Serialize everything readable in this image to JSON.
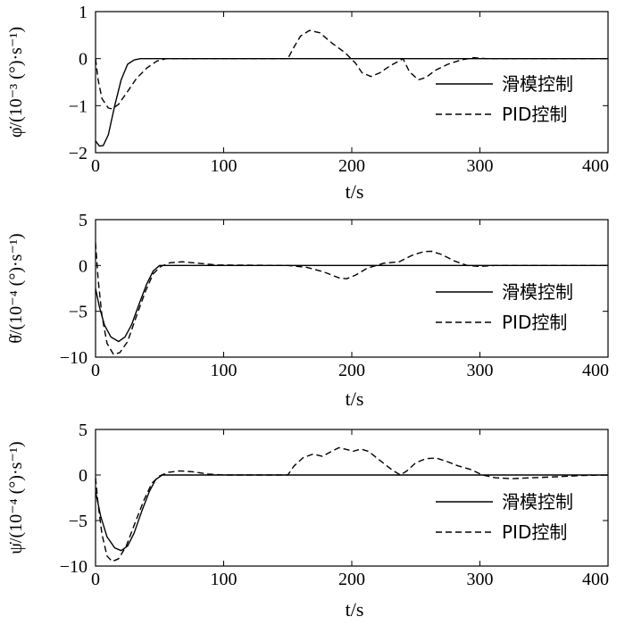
{
  "chart_data": [
    {
      "type": "line",
      "title": "",
      "xlabel": "t/s",
      "ylabel": "φ̇/(10⁻³ (°)·s⁻¹)",
      "xlim": [
        0,
        400
      ],
      "ylim": [
        -2,
        1
      ],
      "xticks": [
        0,
        100,
        200,
        300,
        400
      ],
      "yticks": [
        -2,
        -1,
        0,
        1
      ],
      "legend": "right",
      "series": [
        {
          "name": "滑模控制",
          "style": "solid",
          "color": "#000000",
          "points": [
            [
              0,
              -1.75
            ],
            [
              3,
              -1.86
            ],
            [
              6,
              -1.85
            ],
            [
              10,
              -1.62
            ],
            [
              15,
              -1.0
            ],
            [
              20,
              -0.45
            ],
            [
              25,
              -0.12
            ],
            [
              30,
              -0.03
            ],
            [
              35,
              0.0
            ],
            [
              400,
              0.0
            ]
          ]
        },
        {
          "name": "PID控制",
          "style": "dashed",
          "color": "#000000",
          "points": [
            [
              0,
              0.0
            ],
            [
              2,
              -0.45
            ],
            [
              5,
              -0.85
            ],
            [
              10,
              -1.05
            ],
            [
              13,
              -1.07
            ],
            [
              18,
              -0.97
            ],
            [
              25,
              -0.7
            ],
            [
              32,
              -0.42
            ],
            [
              40,
              -0.2
            ],
            [
              48,
              -0.05
            ],
            [
              55,
              0.0
            ],
            [
              150,
              0.0
            ],
            [
              155,
              0.25
            ],
            [
              160,
              0.48
            ],
            [
              167,
              0.6
            ],
            [
              175,
              0.55
            ],
            [
              185,
              0.32
            ],
            [
              195,
              0.12
            ],
            [
              203,
              -0.1
            ],
            [
              208,
              -0.3
            ],
            [
              215,
              -0.38
            ],
            [
              222,
              -0.3
            ],
            [
              230,
              -0.15
            ],
            [
              237,
              -0.05
            ],
            [
              240,
              0.0
            ],
            [
              245,
              -0.28
            ],
            [
              252,
              -0.45
            ],
            [
              258,
              -0.4
            ],
            [
              265,
              -0.25
            ],
            [
              275,
              -0.12
            ],
            [
              285,
              -0.03
            ],
            [
              295,
              0.02
            ],
            [
              305,
              0.0
            ],
            [
              400,
              0.0
            ]
          ]
        }
      ]
    },
    {
      "type": "line",
      "title": "",
      "xlabel": "t/s",
      "ylabel": "θ̇/(10⁻⁴ (°)·s⁻¹)",
      "xlim": [
        0,
        400
      ],
      "ylim": [
        -10,
        5
      ],
      "xticks": [
        0,
        100,
        200,
        300,
        400
      ],
      "yticks": [
        -10,
        -5,
        0,
        5
      ],
      "legend": "right",
      "series": [
        {
          "name": "滑模控制",
          "style": "solid",
          "color": "#000000",
          "points": [
            [
              0,
              -2.5
            ],
            [
              3,
              -4.5
            ],
            [
              7,
              -6.5
            ],
            [
              12,
              -7.8
            ],
            [
              18,
              -8.3
            ],
            [
              23,
              -7.8
            ],
            [
              28,
              -6.5
            ],
            [
              34,
              -4.2
            ],
            [
              40,
              -2.0
            ],
            [
              45,
              -0.6
            ],
            [
              50,
              0.0
            ],
            [
              400,
              0.0
            ]
          ]
        },
        {
          "name": "PID控制",
          "style": "dashed",
          "color": "#000000",
          "points": [
            [
              0,
              2.5
            ],
            [
              2,
              -1.5
            ],
            [
              5,
              -5.5
            ],
            [
              9,
              -8.5
            ],
            [
              14,
              -9.7
            ],
            [
              19,
              -9.5
            ],
            [
              25,
              -8.3
            ],
            [
              32,
              -5.5
            ],
            [
              39,
              -2.8
            ],
            [
              45,
              -0.9
            ],
            [
              51,
              -0.1
            ],
            [
              58,
              0.3
            ],
            [
              68,
              0.4
            ],
            [
              80,
              0.25
            ],
            [
              95,
              0.05
            ],
            [
              150,
              0.0
            ],
            [
              165,
              -0.2
            ],
            [
              178,
              -0.7
            ],
            [
              190,
              -1.35
            ],
            [
              196,
              -1.45
            ],
            [
              203,
              -1.05
            ],
            [
              212,
              -0.3
            ],
            [
              225,
              0.25
            ],
            [
              237,
              0.4
            ],
            [
              247,
              1.1
            ],
            [
              256,
              1.5
            ],
            [
              262,
              1.55
            ],
            [
              270,
              1.2
            ],
            [
              280,
              0.5
            ],
            [
              290,
              0.0
            ],
            [
              300,
              -0.1
            ],
            [
              312,
              0.0
            ],
            [
              400,
              0.0
            ]
          ]
        }
      ]
    },
    {
      "type": "line",
      "title": "",
      "xlabel": "t/s",
      "ylabel": "ψ̇/(10⁻⁴ (°)·s⁻¹)",
      "xlim": [
        0,
        400
      ],
      "ylim": [
        -10,
        5
      ],
      "xticks": [
        0,
        100,
        200,
        300,
        400
      ],
      "yticks": [
        -10,
        -5,
        0,
        5
      ],
      "legend": "right",
      "series": [
        {
          "name": "滑模控制",
          "style": "solid",
          "color": "#000000",
          "points": [
            [
              0,
              -1.8
            ],
            [
              4,
              -4.5
            ],
            [
              9,
              -6.8
            ],
            [
              15,
              -8.0
            ],
            [
              20,
              -8.3
            ],
            [
              25,
              -7.8
            ],
            [
              30,
              -6.4
            ],
            [
              36,
              -4.0
            ],
            [
              42,
              -1.8
            ],
            [
              47,
              -0.5
            ],
            [
              52,
              0.0
            ],
            [
              400,
              0.0
            ]
          ]
        },
        {
          "name": "PID控制",
          "style": "dashed",
          "color": "#000000",
          "points": [
            [
              0,
              -0.3
            ],
            [
              2,
              -3.2
            ],
            [
              5,
              -6.5
            ],
            [
              9,
              -8.9
            ],
            [
              13,
              -9.5
            ],
            [
              18,
              -9.2
            ],
            [
              24,
              -7.8
            ],
            [
              31,
              -5.2
            ],
            [
              38,
              -2.7
            ],
            [
              44,
              -0.9
            ],
            [
              50,
              -0.1
            ],
            [
              57,
              0.3
            ],
            [
              66,
              0.45
            ],
            [
              76,
              0.35
            ],
            [
              88,
              0.1
            ],
            [
              100,
              0.0
            ],
            [
              150,
              0.0
            ],
            [
              155,
              1.0
            ],
            [
              162,
              1.9
            ],
            [
              170,
              2.3
            ],
            [
              177,
              2.05
            ],
            [
              183,
              2.5
            ],
            [
              190,
              3.0
            ],
            [
              196,
              2.8
            ],
            [
              201,
              2.6
            ],
            [
              207,
              2.85
            ],
            [
              213,
              2.6
            ],
            [
              222,
              1.6
            ],
            [
              232,
              0.5
            ],
            [
              238,
              0.0
            ],
            [
              243,
              0.45
            ],
            [
              250,
              1.35
            ],
            [
              258,
              1.8
            ],
            [
              266,
              1.85
            ],
            [
              274,
              1.5
            ],
            [
              283,
              1.0
            ],
            [
              293,
              0.6
            ],
            [
              302,
              0.0
            ],
            [
              312,
              -0.3
            ],
            [
              325,
              -0.4
            ],
            [
              340,
              -0.3
            ],
            [
              360,
              -0.2
            ],
            [
              380,
              -0.05
            ],
            [
              400,
              0.0
            ]
          ]
        }
      ]
    }
  ]
}
